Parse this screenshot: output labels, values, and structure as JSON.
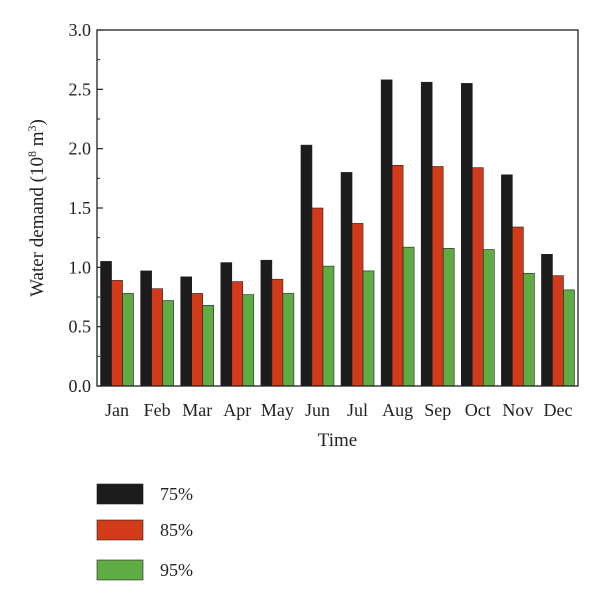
{
  "chart_data": {
    "type": "bar",
    "categories": [
      "Jan",
      "Feb",
      "Mar",
      "Apr",
      "May",
      "Jun",
      "Jul",
      "Aug",
      "Sep",
      "Oct",
      "Nov",
      "Dec"
    ],
    "series": [
      {
        "name": "75%",
        "color": "#1c1c1c",
        "values": [
          1.05,
          0.97,
          0.92,
          1.04,
          1.06,
          2.03,
          1.8,
          2.58,
          2.56,
          2.55,
          1.78,
          1.11
        ]
      },
      {
        "name": "85%",
        "color": "#d33a1a",
        "values": [
          0.89,
          0.82,
          0.78,
          0.88,
          0.9,
          1.5,
          1.37,
          1.86,
          1.85,
          1.84,
          1.34,
          0.93
        ]
      },
      {
        "name": "95%",
        "color": "#5fac45",
        "values": [
          0.78,
          0.72,
          0.68,
          0.77,
          0.78,
          1.01,
          0.97,
          1.17,
          1.16,
          1.15,
          0.95,
          0.81
        ]
      }
    ],
    "xlabel": "Time",
    "ylabel": {
      "prefix": "Water demand (10",
      "sup1": "8",
      "mid": " m",
      "sup2": "3",
      "suffix": ")"
    },
    "ylim": [
      0,
      3.0
    ],
    "yticks": [
      "0.0",
      "0.5",
      "1.0",
      "1.5",
      "2.0",
      "2.5",
      "3.0"
    ],
    "grid": false,
    "legend_position": "below"
  }
}
